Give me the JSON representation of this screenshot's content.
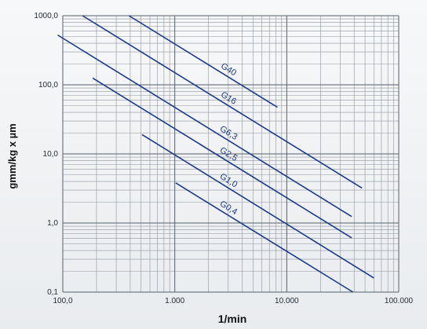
{
  "chart_data": {
    "type": "line",
    "title": "",
    "xlabel": "1/min",
    "ylabel": "gmm/kg x µm",
    "x_scale": "log",
    "y_scale": "log",
    "xlim": [
      100,
      100000
    ],
    "ylim": [
      0.1,
      1000
    ],
    "x_tick_values": [
      100,
      1000,
      10000,
      100000
    ],
    "x_tick_labels": [
      "100,0",
      "1.000",
      "10.000",
      "100.000"
    ],
    "y_tick_values": [
      0.1,
      1,
      10,
      100,
      1000
    ],
    "y_tick_labels": [
      "0,1",
      "1,0",
      "10,0",
      "100,0",
      "1000,0"
    ],
    "grid": true,
    "line_color": "#1d3a8a",
    "series": [
      {
        "name": "G40",
        "x": [
          390,
          8250
        ],
        "y": [
          1000,
          47.3
        ]
      },
      {
        "name": "G16",
        "x": [
          150,
          47000
        ],
        "y": [
          1000,
          3.2
        ]
      },
      {
        "name": "G6,3",
        "x": [
          90,
          38000
        ],
        "y": [
          525,
          1.24
        ]
      },
      {
        "name": "G2,5",
        "x": [
          185,
          38000
        ],
        "y": [
          125,
          0.61
        ]
      },
      {
        "name": "G1,0",
        "x": [
          510,
          60000
        ],
        "y": [
          19.0,
          0.16
        ]
      },
      {
        "name": "G0,4",
        "x": [
          1020,
          39000
        ],
        "y": [
          3.8,
          0.1
        ]
      }
    ]
  }
}
